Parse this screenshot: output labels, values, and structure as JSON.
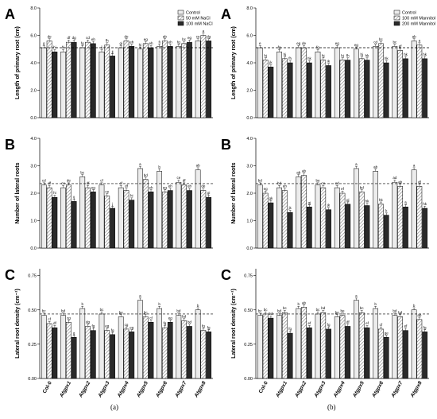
{
  "chart_data": [
    {
      "type": "bar",
      "figure": "a",
      "panel": "A",
      "ylabel": "Length of primary root (cm)",
      "ylim": [
        0,
        8
      ],
      "yticks": [
        "0.0",
        "2.0",
        "4.0",
        "6.0",
        "8.0"
      ],
      "ref_line": 5.1,
      "categories": [
        "Col-0",
        "Atgpx1",
        "Atgpx2",
        "Atgpx3",
        "Atgpx4",
        "Atgpx5",
        "Atgpx6",
        "Atgpx7",
        "Atgpx8"
      ],
      "legend": [
        "Control",
        "50 mM NaCl",
        "100 mM NaCl"
      ],
      "series": [
        {
          "name": "Control",
          "values": [
            5.1,
            4.8,
            5.1,
            4.8,
            5.1,
            5.0,
            5.2,
            5.2,
            5.6
          ]
        },
        {
          "name": "50 mM NaCl",
          "values": [
            5.6,
            5.5,
            5.5,
            5.3,
            5.6,
            5.4,
            5.6,
            5.4,
            6.0
          ]
        },
        {
          "name": "100 mM NaCl",
          "values": [
            4.8,
            5.5,
            5.4,
            4.5,
            5.2,
            5.1,
            5.2,
            5.5,
            5.6
          ]
        }
      ],
      "sig": [
        [
          "g",
          "de",
          "hi"
        ],
        [
          "hi",
          "df",
          "dg"
        ],
        [
          "fg",
          "cd",
          "eh"
        ],
        [
          "ij",
          "fh",
          "jj"
        ],
        [
          "gi",
          "de",
          "eh"
        ],
        [
          "hi",
          "eg",
          "eh"
        ],
        [
          "fi",
          "ab",
          "eh"
        ],
        [
          "fg",
          "bc",
          "eg"
        ],
        [
          "ce",
          "a",
          "dg"
        ]
      ]
    },
    {
      "type": "bar",
      "figure": "a",
      "panel": "B",
      "ylabel": "Number of lateral roots",
      "ylim": [
        0,
        4
      ],
      "yticks": [
        "0.0",
        "1.0",
        "2.0",
        "3.0",
        "4.0"
      ],
      "ref_line": 2.35,
      "categories": [
        "Col-0",
        "Atgpx1",
        "Atgpx2",
        "Atgpx3",
        "Atgpx4",
        "Atgpx5",
        "Atgpx6",
        "Atgpx7",
        "Atgpx8"
      ],
      "series": [
        {
          "name": "Control",
          "values": [
            2.3,
            2.2,
            2.6,
            2.3,
            2.2,
            2.9,
            2.8,
            2.4,
            2.85
          ]
        },
        {
          "name": "50 mM NaCl",
          "values": [
            2.2,
            2.3,
            2.2,
            1.9,
            2.1,
            2.5,
            2.05,
            2.3,
            2.1
          ]
        },
        {
          "name": "100 mM NaCl",
          "values": [
            1.85,
            1.7,
            2.05,
            1.45,
            1.75,
            2.05,
            2.1,
            2.1,
            1.85
          ]
        }
      ],
      "sig": [
        [
          "cd",
          "df",
          "hi"
        ],
        [
          "ce",
          "de",
          "ij"
        ],
        [
          "bc",
          "df",
          "eg"
        ],
        [
          "cf",
          "ce",
          "j"
        ],
        [
          "cf",
          "df",
          "hi"
        ],
        [
          "a",
          "bd",
          "eh"
        ],
        [
          "b",
          "eg",
          "eh"
        ],
        [
          "ce",
          "df",
          "eh"
        ],
        [
          "ab",
          "de",
          "gi"
        ]
      ]
    },
    {
      "type": "bar",
      "figure": "a",
      "panel": "C",
      "ylabel": "Lateral root density (cm⁻¹)",
      "ylim": [
        0,
        0.8
      ],
      "yticks": [
        "0.00",
        "0.25",
        "0.50",
        "0.75"
      ],
      "ref_line": 0.47,
      "categories": [
        "Col-0",
        "Atgpx1",
        "Atgpx2",
        "Atgpx3",
        "Atgpx4",
        "Atgpx5",
        "Atgpx6",
        "Atgpx7",
        "Atgpx8"
      ],
      "series": [
        {
          "name": "Control",
          "values": [
            0.46,
            0.46,
            0.51,
            0.47,
            0.45,
            0.57,
            0.51,
            0.46,
            0.5
          ]
        },
        {
          "name": "50 mM NaCl",
          "values": [
            0.4,
            0.41,
            0.38,
            0.35,
            0.36,
            0.45,
            0.37,
            0.42,
            0.35
          ]
        },
        {
          "name": "100 mM NaCl",
          "values": [
            0.37,
            0.3,
            0.35,
            0.32,
            0.34,
            0.41,
            0.41,
            0.38,
            0.34
          ]
        }
      ],
      "sig": [
        [
          "bc",
          "cf",
          "df"
        ],
        [
          "bd",
          "cg",
          "g"
        ],
        [
          "b",
          "dg",
          "fg"
        ],
        [
          "bc",
          "eg",
          "fg"
        ],
        [
          "be",
          "cg",
          "eg"
        ],
        [
          "a",
          "bc",
          "cf"
        ],
        [
          "b",
          "fg",
          "eg"
        ],
        [
          "bd",
          "bd",
          "bd"
        ],
        [
          "b",
          "fg",
          "fg"
        ]
      ]
    },
    {
      "type": "bar",
      "figure": "b",
      "panel": "A",
      "ylabel": "Length of primary root (cm)",
      "ylim": [
        0,
        8
      ],
      "yticks": [
        "0.0",
        "2.0",
        "4.0",
        "6.0",
        "8.0"
      ],
      "ref_line": 5.1,
      "categories": [
        "Col-0",
        "Atgpx1",
        "Atgpx2",
        "Atgpx3",
        "Atgpx4",
        "Atgpx5",
        "Atgpx6",
        "Atgpx7",
        "Atgpx8"
      ],
      "legend": [
        "Control",
        "100 mM Mannitol",
        "200 mM Mannitol"
      ],
      "series": [
        {
          "name": "Control",
          "values": [
            5.1,
            4.8,
            5.1,
            4.8,
            5.1,
            5.0,
            5.2,
            5.2,
            5.6
          ]
        },
        {
          "name": "100 mM Mannitol",
          "values": [
            4.2,
            4.3,
            5.1,
            4.2,
            4.2,
            4.3,
            5.4,
            4.9,
            5.3
          ]
        },
        {
          "name": "200 mM Mannitol",
          "values": [
            3.7,
            4.0,
            4.0,
            3.8,
            4.2,
            4.2,
            4.0,
            4.3,
            4.3
          ]
        }
      ],
      "sig": [
        [
          "e",
          "hj",
          "jk"
        ],
        [
          "fg",
          "hj",
          "fh"
        ],
        [
          "eg",
          "de",
          "hk"
        ],
        [
          "fg",
          "hj",
          "ik"
        ],
        [
          "eg",
          "hj",
          "fh"
        ],
        [
          "eg",
          "hj",
          "hk"
        ],
        [
          "cd",
          "bc",
          "hk"
        ],
        [
          "bc",
          "ef",
          "hk"
        ],
        [
          "ab",
          "a",
          "hk"
        ]
      ]
    },
    {
      "type": "bar",
      "figure": "b",
      "panel": "B",
      "ylabel": "Number of lateral roots",
      "ylim": [
        0,
        4
      ],
      "yticks": [
        "0.0",
        "1.0",
        "2.0",
        "3.0",
        "4.0"
      ],
      "ref_line": 2.35,
      "categories": [
        "Col-0",
        "Atgpx1",
        "Atgpx2",
        "Atgpx3",
        "Atgpx4",
        "Atgpx5",
        "Atgpx6",
        "Atgpx7",
        "Atgpx8"
      ],
      "series": [
        {
          "name": "Control",
          "values": [
            2.3,
            2.2,
            2.6,
            2.3,
            2.2,
            2.9,
            2.8,
            2.4,
            2.85
          ]
        },
        {
          "name": "100 mM Mannitol",
          "values": [
            2.0,
            2.1,
            2.65,
            2.2,
            2.0,
            2.05,
            1.6,
            2.25,
            2.25
          ]
        },
        {
          "name": "200 mM Mannitol",
          "values": [
            1.65,
            1.3,
            1.5,
            1.4,
            1.6,
            1.55,
            1.2,
            1.5,
            1.45
          ]
        }
      ],
      "sig": [
        [
          "bd",
          "eg",
          "gk"
        ],
        [
          "bd",
          "eh",
          "jk"
        ],
        [
          "ab",
          "ab",
          "gj"
        ],
        [
          "be",
          "ce",
          "jk"
        ],
        [
          "cd",
          "ef",
          "gj"
        ],
        [
          "a",
          "bd",
          "hk"
        ],
        [
          "ab",
          "hk",
          "k"
        ],
        [
          "ad",
          "ab",
          "fj"
        ],
        [
          "a",
          "df",
          "hk"
        ]
      ]
    },
    {
      "type": "bar",
      "figure": "b",
      "panel": "C",
      "ylabel": "Lateral root density (cm⁻¹)",
      "ylim": [
        0,
        0.8
      ],
      "yticks": [
        "0.00",
        "0.25",
        "0.50",
        "0.75"
      ],
      "ref_line": 0.47,
      "categories": [
        "Col-0",
        "Atgpx1",
        "Atgpx2",
        "Atgpx3",
        "Atgpx4",
        "Atgpx5",
        "Atgpx6",
        "Atgpx7",
        "Atgpx8"
      ],
      "series": [
        {
          "name": "Control",
          "values": [
            0.46,
            0.46,
            0.51,
            0.47,
            0.45,
            0.57,
            0.51,
            0.46,
            0.5
          ]
        },
        {
          "name": "100 mM Mannitol",
          "values": [
            0.47,
            0.48,
            0.52,
            0.48,
            0.46,
            0.48,
            0.36,
            0.45,
            0.43
          ]
        },
        {
          "name": "200 mM Mannitol",
          "values": [
            0.44,
            0.33,
            0.37,
            0.36,
            0.38,
            0.37,
            0.3,
            0.35,
            0.34
          ]
        }
      ],
      "sig": [
        [
          "bc",
          "bc",
          "bd"
        ],
        [
          "bd",
          "bc",
          "fg"
        ],
        [
          "b",
          "ab",
          "ef"
        ],
        [
          "bc",
          "bd",
          "fg"
        ],
        [
          "be",
          "be",
          "df"
        ],
        [
          "a",
          "bc",
          "ef"
        ],
        [
          "b",
          "cf",
          "ge"
        ],
        [
          "bd",
          "bd",
          "ef"
        ],
        [
          "b",
          "ab",
          "fg"
        ]
      ]
    }
  ],
  "colors": {
    "control": "#ececec",
    "treatment1_hatch": "#9a9a9a",
    "treatment2": "#2a2a2a"
  },
  "captions": {
    "left": "(a)",
    "right": "(b)"
  }
}
